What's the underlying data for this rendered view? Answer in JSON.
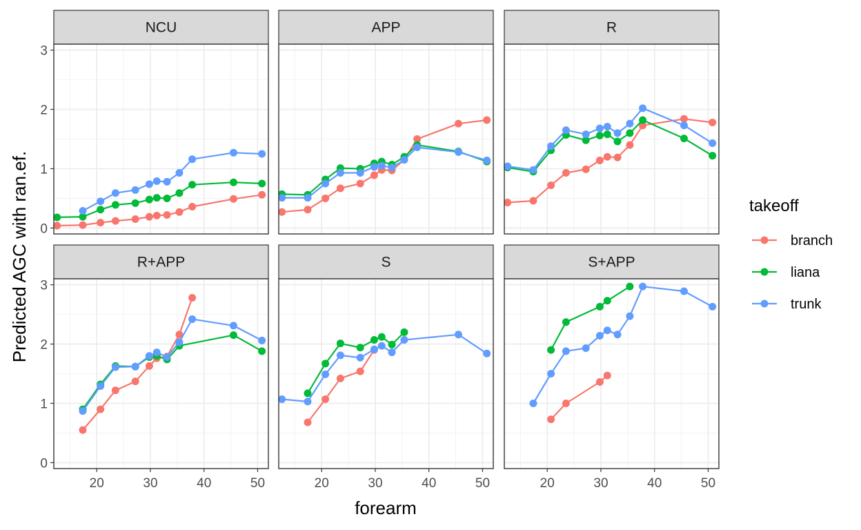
{
  "chart_data": {
    "type": "line",
    "xlabel": "forearm",
    "ylabel": "Predicted AGC with ran.ef.",
    "xlim": [
      12,
      52
    ],
    "ylim": [
      -0.1,
      3.1
    ],
    "x_ticks": [
      20,
      30,
      40,
      50
    ],
    "y_ticks": [
      0,
      1,
      2,
      3
    ],
    "legend": {
      "title": "takeoff",
      "placement": "right",
      "entries": [
        {
          "name": "branch",
          "color": "#F8766D"
        },
        {
          "name": "liana",
          "color": "#00BA38"
        },
        {
          "name": "trunk",
          "color": "#619CFF"
        }
      ]
    },
    "panels": [
      {
        "title": "NCU",
        "series": [
          {
            "name": "branch",
            "x": [
              12.6,
              17.4,
              20.7,
              23.5,
              27.2,
              29.8,
              31.2,
              33.1,
              35.4,
              37.8,
              45.5,
              50.8
            ],
            "y": [
              0.04,
              0.05,
              0.09,
              0.12,
              0.15,
              0.19,
              0.21,
              0.22,
              0.27,
              0.36,
              0.49,
              0.56
            ]
          },
          {
            "name": "liana",
            "x": [
              12.6,
              17.4,
              20.7,
              23.5,
              27.2,
              29.8,
              31.2,
              33.1,
              35.4,
              37.8,
              45.5,
              50.8
            ],
            "y": [
              0.18,
              0.19,
              0.31,
              0.39,
              0.42,
              0.48,
              0.51,
              0.5,
              0.59,
              0.73,
              0.77,
              0.75
            ]
          },
          {
            "name": "trunk",
            "x": [
              17.4,
              20.7,
              23.5,
              27.2,
              29.8,
              31.2,
              33.1,
              35.4,
              37.8,
              45.5,
              50.8
            ],
            "y": [
              0.29,
              0.45,
              0.59,
              0.64,
              0.74,
              0.79,
              0.78,
              0.93,
              1.16,
              1.27,
              1.25
            ]
          }
        ]
      },
      {
        "title": "APP",
        "series": [
          {
            "name": "branch",
            "x": [
              12.6,
              17.4,
              20.7,
              23.5,
              27.2,
              29.8,
              31.2,
              33.1,
              35.4,
              37.8,
              45.5,
              50.8
            ],
            "y": [
              0.27,
              0.31,
              0.5,
              0.67,
              0.75,
              0.89,
              0.98,
              0.97,
              1.15,
              1.5,
              1.76,
              1.82
            ]
          },
          {
            "name": "liana",
            "x": [
              12.6,
              17.4,
              20.7,
              23.5,
              27.2,
              29.8,
              31.2,
              33.1,
              35.4,
              37.8,
              45.5,
              50.8
            ],
            "y": [
              0.57,
              0.56,
              0.82,
              1.01,
              1.0,
              1.09,
              1.12,
              1.07,
              1.2,
              1.4,
              1.29,
              1.12
            ]
          },
          {
            "name": "trunk",
            "x": [
              12.6,
              17.4,
              20.7,
              23.5,
              27.2,
              29.8,
              31.2,
              33.1,
              35.4,
              37.8,
              45.5,
              50.8
            ],
            "y": [
              0.51,
              0.51,
              0.75,
              0.93,
              0.93,
              1.03,
              1.05,
              1.02,
              1.15,
              1.36,
              1.28,
              1.14
            ]
          }
        ]
      },
      {
        "title": "R",
        "series": [
          {
            "name": "branch",
            "x": [
              12.6,
              17.4,
              20.7,
              23.5,
              27.2,
              29.8,
              31.2,
              33.1,
              35.4,
              37.8,
              45.5,
              50.8
            ],
            "y": [
              0.43,
              0.46,
              0.72,
              0.93,
              0.99,
              1.14,
              1.2,
              1.19,
              1.4,
              1.73,
              1.84,
              1.78
            ]
          },
          {
            "name": "liana",
            "x": [
              12.6,
              17.4,
              20.7,
              23.5,
              27.2,
              29.8,
              31.2,
              33.1,
              35.4,
              37.8,
              45.5,
              50.8
            ],
            "y": [
              1.02,
              0.95,
              1.31,
              1.57,
              1.48,
              1.56,
              1.58,
              1.46,
              1.6,
              1.82,
              1.51,
              1.22
            ]
          },
          {
            "name": "trunk",
            "x": [
              12.6,
              17.4,
              20.7,
              23.5,
              27.2,
              29.8,
              31.2,
              33.1,
              35.4,
              37.8,
              45.5,
              50.8
            ],
            "y": [
              1.04,
              0.98,
              1.38,
              1.65,
              1.58,
              1.68,
              1.71,
              1.6,
              1.76,
              2.02,
              1.73,
              1.43
            ]
          }
        ]
      },
      {
        "title": "R+APP",
        "series": [
          {
            "name": "branch",
            "x": [
              17.4,
              20.7,
              23.5,
              27.2,
              29.8,
              31.2,
              33.1,
              35.4,
              37.8
            ],
            "y": [
              0.55,
              0.9,
              1.22,
              1.37,
              1.63,
              1.76,
              1.79,
              2.16,
              2.78
            ]
          },
          {
            "name": "liana",
            "x": [
              17.4,
              20.7,
              23.5,
              27.2,
              29.8,
              31.2,
              33.1,
              35.4,
              45.5,
              50.8
            ],
            "y": [
              0.9,
              1.32,
              1.63,
              1.62,
              1.78,
              1.8,
              1.74,
              1.97,
              2.15,
              1.88
            ]
          },
          {
            "name": "trunk",
            "x": [
              17.4,
              20.7,
              23.5,
              27.2,
              29.8,
              31.2,
              33.1,
              35.4,
              37.8,
              45.5,
              50.8
            ],
            "y": [
              0.87,
              1.29,
              1.61,
              1.62,
              1.8,
              1.86,
              1.78,
              2.03,
              2.42,
              2.31,
              2.06
            ]
          }
        ]
      },
      {
        "title": "S",
        "series": [
          {
            "name": "branch",
            "x": [
              17.4,
              20.7,
              23.5,
              27.2,
              29.8
            ],
            "y": [
              0.68,
              1.07,
              1.42,
              1.54,
              1.9
            ]
          },
          {
            "name": "liana",
            "x": [
              17.4,
              20.7,
              23.5,
              27.2,
              29.8,
              31.2,
              33.1,
              35.4
            ],
            "y": [
              1.17,
              1.67,
              2.01,
              1.94,
              2.07,
              2.12,
              1.99,
              2.2
            ]
          },
          {
            "name": "trunk",
            "x": [
              12.6,
              17.4,
              20.7,
              23.5,
              27.2,
              29.8,
              31.2,
              33.1,
              35.4,
              45.5,
              50.8
            ],
            "y": [
              1.07,
              1.03,
              1.49,
              1.81,
              1.77,
              1.91,
              1.97,
              1.86,
              2.07,
              2.16,
              1.84
            ]
          }
        ]
      },
      {
        "title": "S+APP",
        "series": [
          {
            "name": "branch",
            "x": [
              20.7,
              23.5,
              29.8,
              31.2
            ],
            "y": [
              0.73,
              1.0,
              1.36,
              1.47
            ]
          },
          {
            "name": "liana",
            "x": [
              20.7,
              23.5,
              29.8,
              31.2,
              35.4
            ],
            "y": [
              1.9,
              2.37,
              2.63,
              2.73,
              2.97
            ]
          },
          {
            "name": "trunk",
            "x": [
              17.4,
              20.7,
              23.5,
              27.2,
              29.8,
              31.2,
              33.1,
              35.4,
              37.8,
              45.5,
              50.8
            ],
            "y": [
              1.0,
              1.5,
              1.88,
              1.93,
              2.14,
              2.23,
              2.16,
              2.47,
              2.97,
              2.89,
              2.63
            ]
          }
        ]
      }
    ]
  }
}
